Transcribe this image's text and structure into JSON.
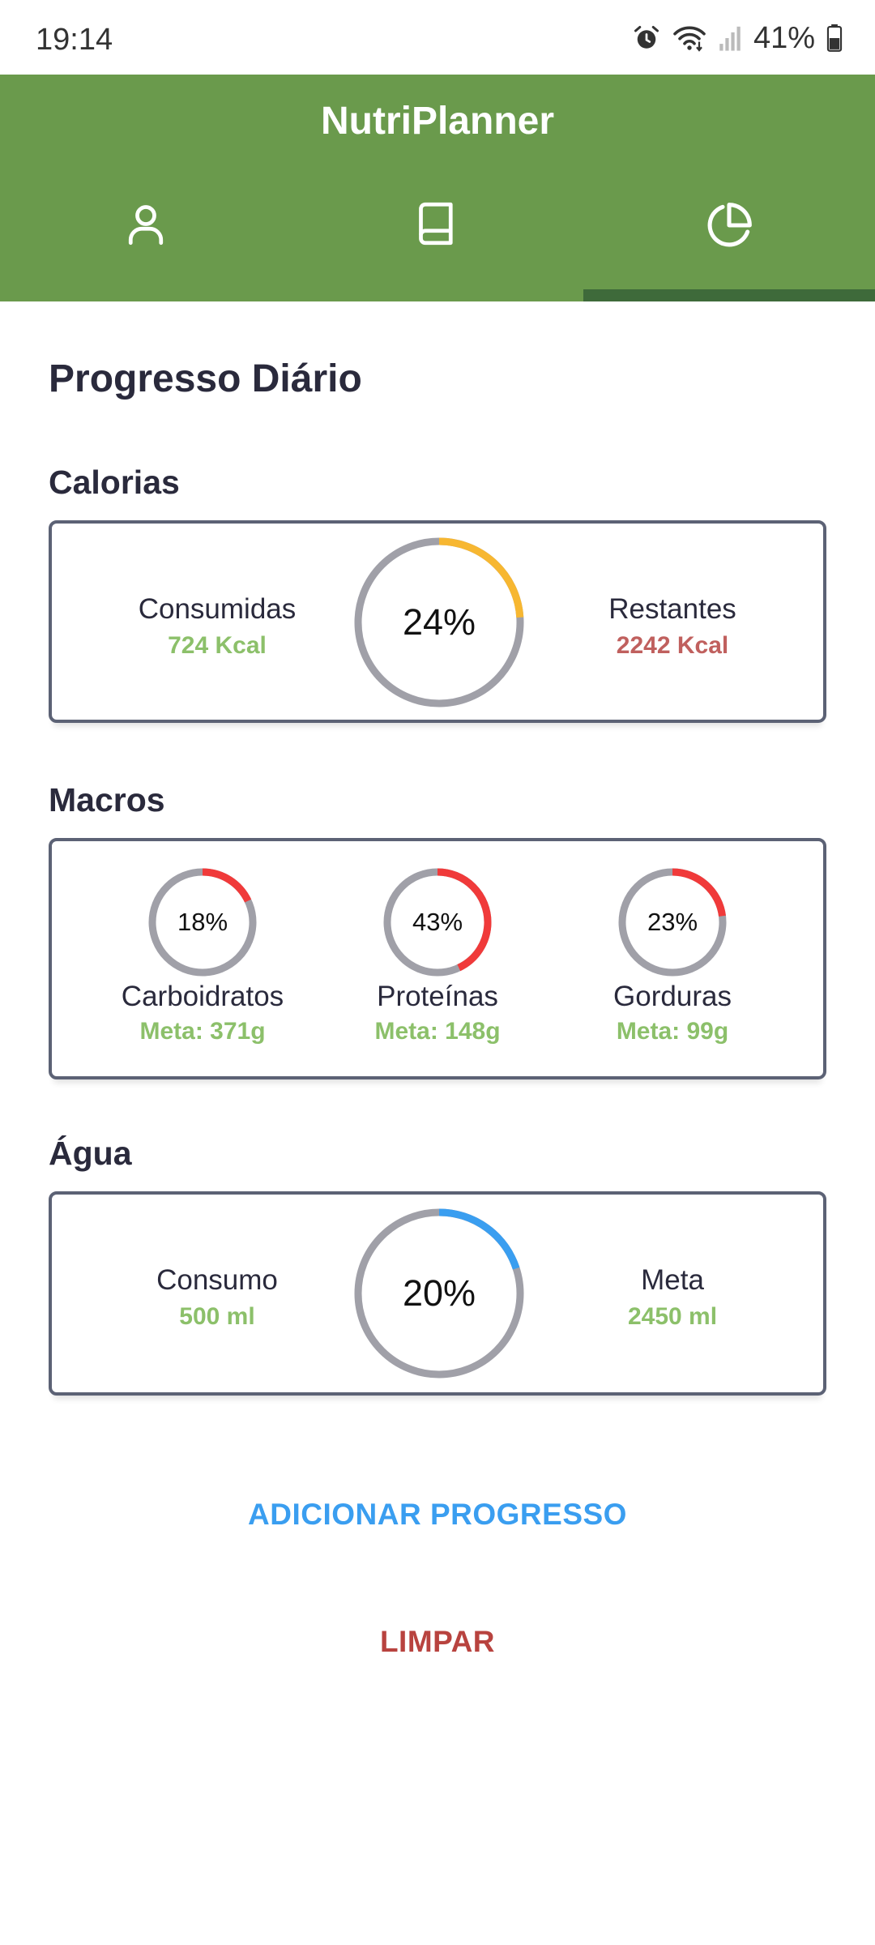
{
  "status_bar": {
    "time": "19:14",
    "battery": "41%"
  },
  "app": {
    "title": "NutriPlanner"
  },
  "tabs": [
    {
      "name": "profile",
      "icon": "user-icon"
    },
    {
      "name": "diary",
      "icon": "book-icon"
    },
    {
      "name": "progress",
      "icon": "pie-chart-icon",
      "selected": true
    }
  ],
  "page": {
    "title": "Progresso Diário"
  },
  "calories": {
    "heading": "Calorias",
    "consumed_label": "Consumidas",
    "consumed_value": "724 Kcal",
    "percent_label": "24%",
    "percent": 24,
    "remaining_label": "Restantes",
    "remaining_value": "2242 Kcal",
    "ring_color": "#f7b731"
  },
  "macros": {
    "heading": "Macros",
    "items": [
      {
        "name": "Carboidratos",
        "percent_label": "18%",
        "percent": 18,
        "goal": "Meta: 371g"
      },
      {
        "name": "Proteínas",
        "percent_label": "43%",
        "percent": 43,
        "goal": "Meta: 148g"
      },
      {
        "name": "Gorduras",
        "percent_label": "23%",
        "percent": 23,
        "goal": "Meta: 99g"
      }
    ],
    "ring_color": "#f03a3a"
  },
  "water": {
    "heading": "Água",
    "consumed_label": "Consumo",
    "consumed_value": "500 ml",
    "percent_label": "20%",
    "percent": 20,
    "goal_label": "Meta",
    "goal_value": "2450 ml",
    "ring_color": "#3a9ef0"
  },
  "actions": {
    "add_label": "ADICIONAR PROGRESSO",
    "clear_label": "LIMPAR"
  },
  "colors": {
    "header": "#6a9a4c",
    "tab_indicator": "#3e6a3a",
    "positive": "#8cc06a",
    "negative": "#c0605e",
    "ring_track": "#a0a0a8",
    "add_button": "#3a9ef0",
    "clear_button": "#b8433f"
  }
}
